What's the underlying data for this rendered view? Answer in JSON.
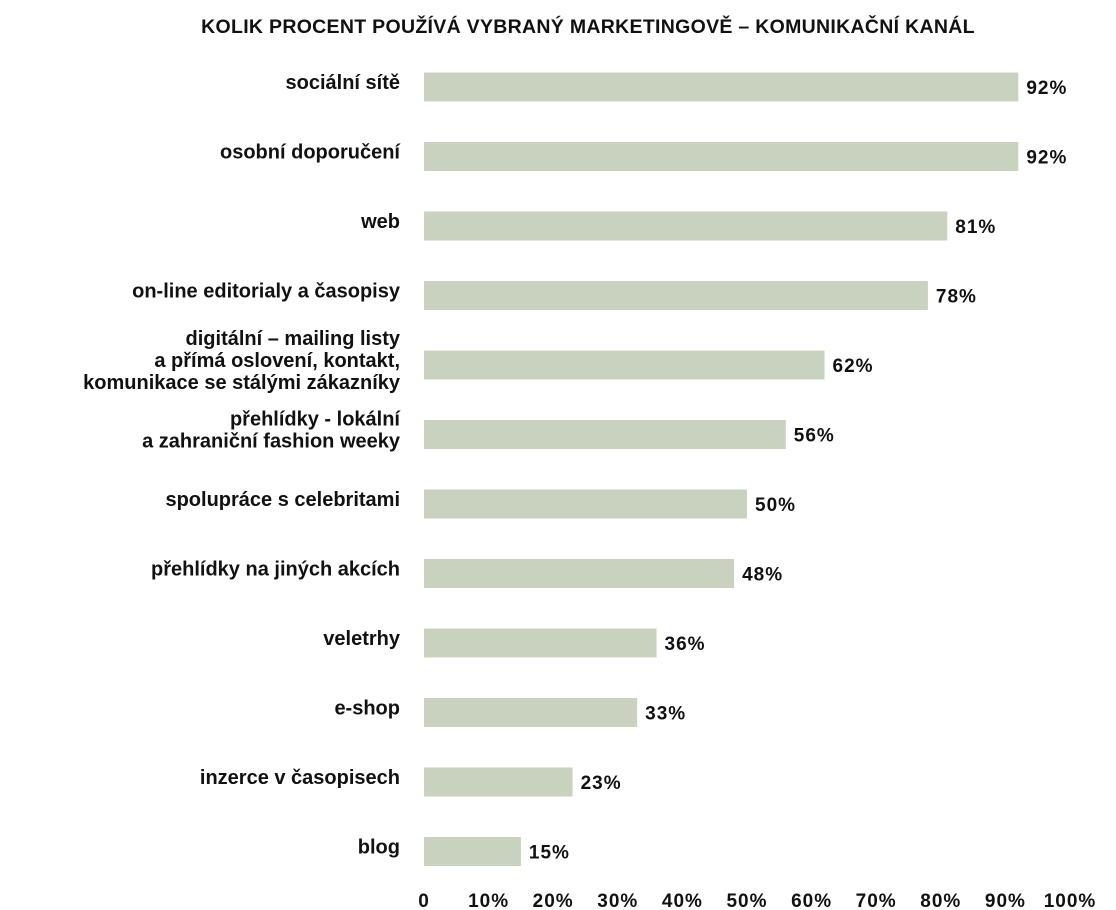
{
  "chart_data": {
    "type": "bar",
    "orientation": "horizontal",
    "title": "KOLIK PROCENT POUŽÍVÁ VYBRANÝ MARKETINGOVĚ – KOMUNIKAČNÍ KANÁL",
    "categories": [
      "sociální sítě",
      "osobní doporučení",
      "web",
      "on-line editorialy a časopisy",
      "digitální – mailing listy\na přímá oslovení, kontakt,\nkomunikace se stálými zákazníky",
      "přehlídky - lokální\na zahraniční fashion weeky",
      "spolupráce s celebritami",
      "přehlídky na jiných akcích",
      "veletrhy",
      "e-shop",
      "inzerce v časopisech",
      "blog"
    ],
    "values": [
      92,
      92,
      81,
      78,
      62,
      56,
      50,
      48,
      36,
      33,
      23,
      15
    ],
    "value_labels": [
      "92%",
      "92%",
      "81%",
      "78%",
      "62%",
      "56%",
      "50%",
      "48%",
      "36%",
      "33%",
      "23%",
      "15%"
    ],
    "color": "#c8d2bf",
    "xlim": [
      0,
      100
    ],
    "xticks": [
      0,
      {
        "value": 10,
        "label": "10%"
      },
      {
        "value": 20,
        "label": "20%"
      },
      {
        "value": 30,
        "label": "30%"
      },
      {
        "value": 40,
        "label": "40%"
      },
      {
        "value": 50,
        "label": "50%"
      },
      {
        "value": 60,
        "label": "60%"
      },
      {
        "value": 70,
        "label": "70%"
      },
      {
        "value": 80,
        "label": "80%"
      },
      {
        "value": 90,
        "label": "90%"
      },
      {
        "value": 100,
        "label": "100%"
      }
    ],
    "grid": false
  }
}
